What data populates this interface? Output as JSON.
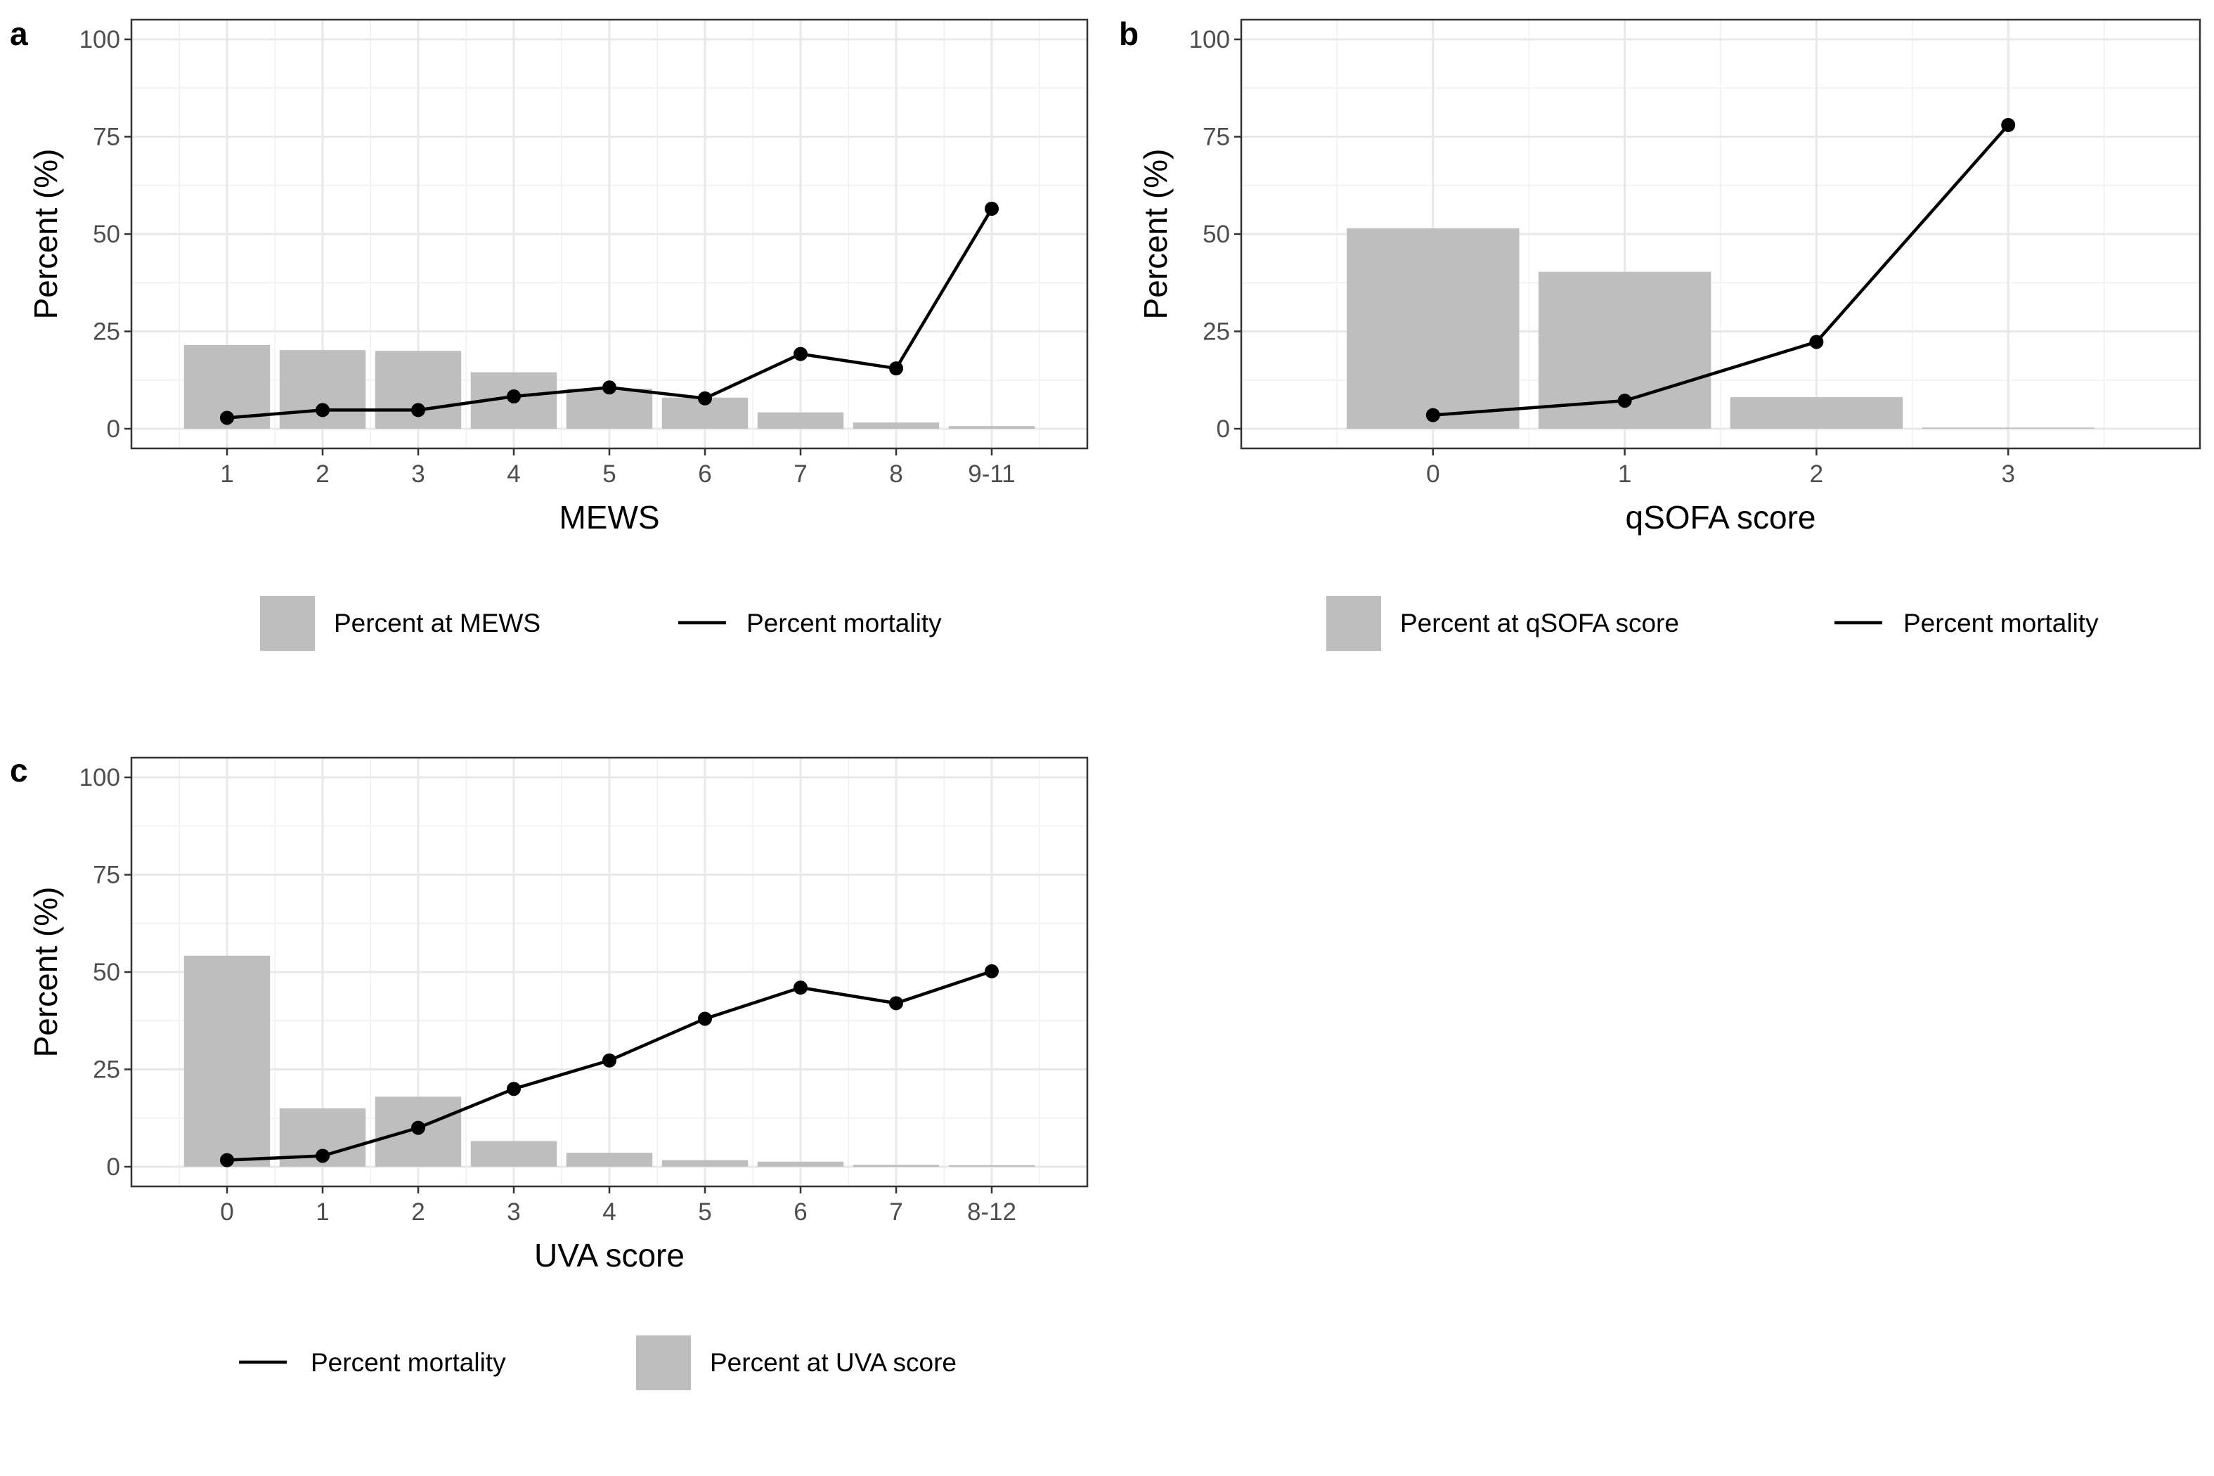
{
  "colors": {
    "bar": "#bebebe",
    "line": "#000000",
    "grid_major": "#e8e8e8",
    "grid_minor": "#f3f3f3",
    "frame": "#333333"
  },
  "chart_data": [
    {
      "tag": "a",
      "type": "bar",
      "categories": [
        "1",
        "2",
        "3",
        "4",
        "5",
        "6",
        "7",
        "8",
        "9-11"
      ],
      "series": [
        {
          "name": "Percent at MEWS",
          "type": "bar",
          "values": [
            21.5,
            20.2,
            20.0,
            14.5,
            10.3,
            8.0,
            4.2,
            1.6,
            0.7
          ]
        },
        {
          "name": "Percent mortality",
          "type": "line",
          "values": [
            2.8,
            4.8,
            4.8,
            8.3,
            10.6,
            7.8,
            19.2,
            15.5,
            56.5
          ]
        }
      ],
      "xlabel": "MEWS",
      "ylabel": "Percent (%)",
      "ylim": [
        0,
        100
      ],
      "yticks": [
        "0",
        "25",
        "50",
        "75",
        "100"
      ],
      "grid": true,
      "legend_position": "bottom",
      "legend": [
        {
          "key": "bar",
          "label": "Percent at MEWS"
        },
        {
          "key": "line",
          "label": "Percent mortality"
        }
      ]
    },
    {
      "tag": "b",
      "type": "bar",
      "categories": [
        "0",
        "1",
        "2",
        "3"
      ],
      "series": [
        {
          "name": "Percent at qSOFA score",
          "type": "bar",
          "values": [
            51.5,
            40.3,
            8.1,
            0.3
          ]
        },
        {
          "name": "Percent mortality",
          "type": "line",
          "values": [
            3.5,
            7.2,
            22.3,
            78.0
          ]
        }
      ],
      "xlabel": "qSOFA score",
      "ylabel": "Percent (%)",
      "ylim": [
        0,
        100
      ],
      "yticks": [
        "0",
        "25",
        "50",
        "75",
        "100"
      ],
      "grid": true,
      "legend_position": "bottom",
      "legend": [
        {
          "key": "bar",
          "label": "Percent at qSOFA score"
        },
        {
          "key": "line",
          "label": "Percent mortality"
        }
      ]
    },
    {
      "tag": "c",
      "type": "bar",
      "categories": [
        "0",
        "1",
        "2",
        "3",
        "4",
        "5",
        "6",
        "7",
        "8-12"
      ],
      "series": [
        {
          "name": "Percent at UVA score",
          "type": "bar",
          "values": [
            54.2,
            15.0,
            18.0,
            6.6,
            3.6,
            1.7,
            1.3,
            0.5,
            0.4
          ]
        },
        {
          "name": "Percent mortality",
          "type": "line",
          "values": [
            1.7,
            2.8,
            10.0,
            20.0,
            27.3,
            38.0,
            46.0,
            42.0,
            50.2
          ]
        }
      ],
      "xlabel": "UVA score",
      "ylabel": "Percent (%)",
      "ylim": [
        0,
        100
      ],
      "yticks": [
        "0",
        "25",
        "50",
        "75",
        "100"
      ],
      "grid": true,
      "legend_position": "bottom",
      "legend": [
        {
          "key": "line",
          "label": "Percent mortality"
        },
        {
          "key": "bar",
          "label": "Percent at UVA score"
        }
      ]
    }
  ]
}
